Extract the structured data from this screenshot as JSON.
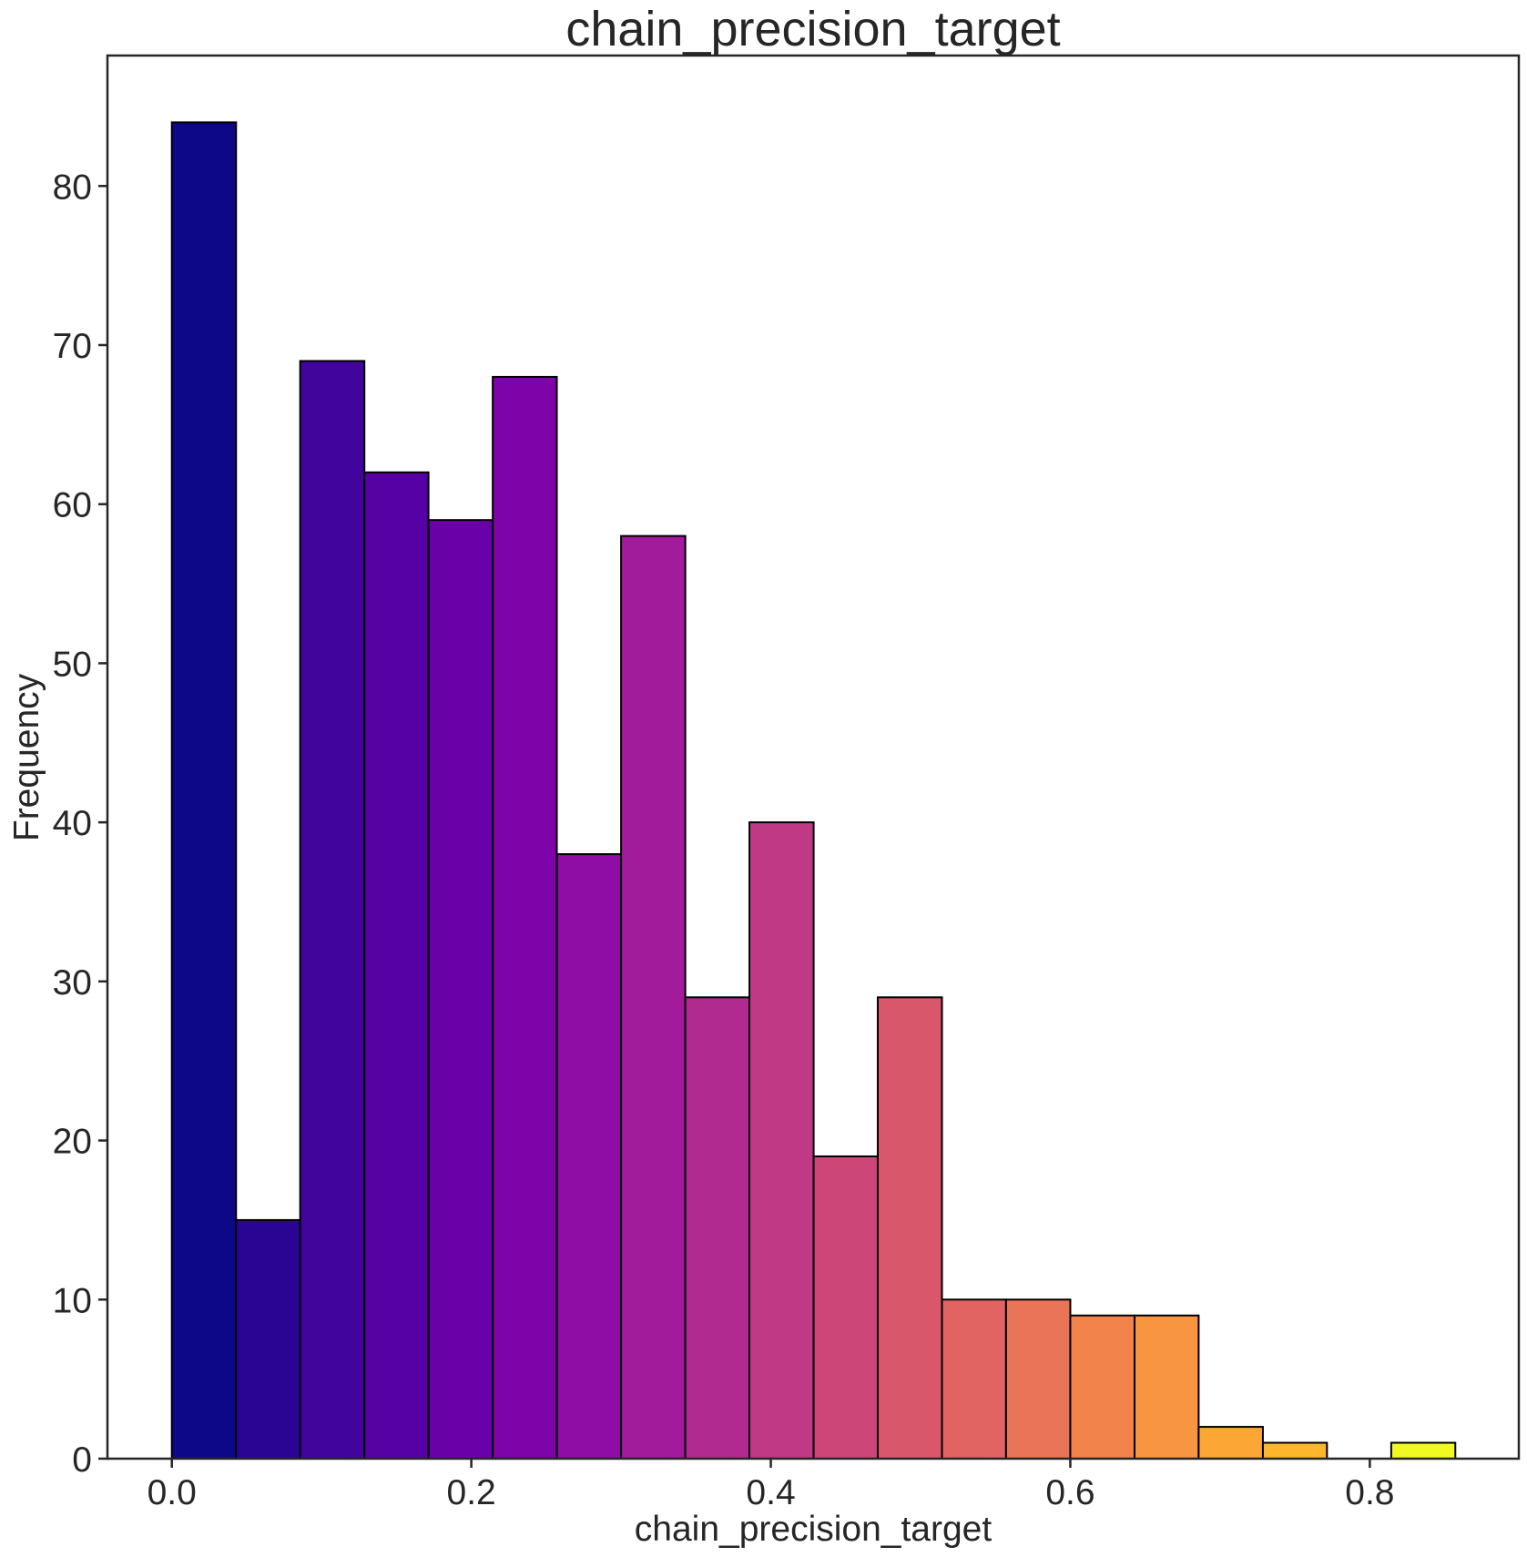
{
  "chart_data": {
    "type": "bar",
    "title": "chain_precision_target",
    "xlabel": "chain_precision_target",
    "ylabel": "Frequency",
    "xlim": [
      -0.043,
      0.8995
    ],
    "ylim": [
      0,
      88.2
    ],
    "xticks": [
      0.0,
      0.2,
      0.4,
      0.6,
      0.8
    ],
    "xtick_labels": [
      "0.0",
      "0.2",
      "0.4",
      "0.6",
      "0.8"
    ],
    "yticks": [
      0,
      10,
      20,
      30,
      40,
      50,
      60,
      70,
      80
    ],
    "ytick_labels": [
      "0",
      "10",
      "20",
      "30",
      "40",
      "50",
      "60",
      "70",
      "80"
    ],
    "grid": false,
    "legend": "none",
    "colormap": "plasma",
    "bins": [
      {
        "x0": 0.0,
        "x1": 0.0429,
        "count": 84,
        "color": "#0d0887"
      },
      {
        "x0": 0.0429,
        "x1": 0.0857,
        "count": 15,
        "color": "#2a0593"
      },
      {
        "x0": 0.0857,
        "x1": 0.1286,
        "count": 69,
        "color": "#41049d"
      },
      {
        "x0": 0.1286,
        "x1": 0.1714,
        "count": 62,
        "color": "#5601a4"
      },
      {
        "x0": 0.1714,
        "x1": 0.2143,
        "count": 59,
        "color": "#6a00a8"
      },
      {
        "x0": 0.2143,
        "x1": 0.2571,
        "count": 68,
        "color": "#7e03a8"
      },
      {
        "x0": 0.2571,
        "x1": 0.3,
        "count": 38,
        "color": "#8f0da4"
      },
      {
        "x0": 0.3,
        "x1": 0.3429,
        "count": 58,
        "color": "#a11b9b"
      },
      {
        "x0": 0.3429,
        "x1": 0.3857,
        "count": 29,
        "color": "#b12a90"
      },
      {
        "x0": 0.3857,
        "x1": 0.4286,
        "count": 40,
        "color": "#bf3984"
      },
      {
        "x0": 0.4286,
        "x1": 0.4714,
        "count": 19,
        "color": "#cc4778"
      },
      {
        "x0": 0.4714,
        "x1": 0.5143,
        "count": 29,
        "color": "#d8576b"
      },
      {
        "x0": 0.5143,
        "x1": 0.5571,
        "count": 10,
        "color": "#e16462"
      },
      {
        "x0": 0.5571,
        "x1": 0.6,
        "count": 10,
        "color": "#ea7457"
      },
      {
        "x0": 0.6,
        "x1": 0.6429,
        "count": 9,
        "color": "#f2844b"
      },
      {
        "x0": 0.6429,
        "x1": 0.6857,
        "count": 9,
        "color": "#f89540"
      },
      {
        "x0": 0.6857,
        "x1": 0.7286,
        "count": 2,
        "color": "#fca636"
      },
      {
        "x0": 0.7286,
        "x1": 0.7714,
        "count": 1,
        "color": "#fdb72d"
      },
      {
        "x0": 0.7714,
        "x1": 0.8143,
        "count": 0,
        "color": "#fcce25"
      },
      {
        "x0": 0.8143,
        "x1": 0.8571,
        "count": 1,
        "color": "#f0f921"
      }
    ]
  }
}
